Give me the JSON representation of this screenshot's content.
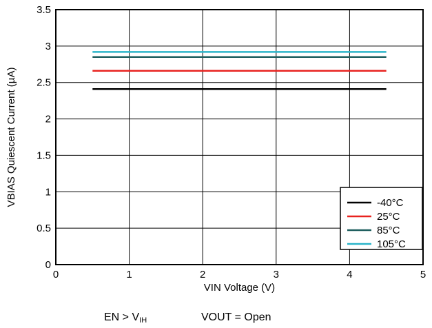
{
  "chart_data": {
    "type": "line",
    "title": "",
    "xlabel": "VIN Voltage (V)",
    "ylabel": "VBIAS Quiescent Current (µA)",
    "xlim": [
      0,
      5
    ],
    "ylim": [
      0,
      3.5
    ],
    "x_ticks": [
      "0",
      "1",
      "2",
      "3",
      "4",
      "5"
    ],
    "y_ticks": [
      "0",
      "0.5",
      "1",
      "1.5",
      "2",
      "2.5",
      "3",
      "3.5"
    ],
    "grid": true,
    "legend_position": "bottom-right",
    "series": [
      {
        "name": "-40°C",
        "color": "#000000",
        "x": [
          0.5,
          4.5
        ],
        "y": [
          2.41,
          2.41
        ]
      },
      {
        "name": "25°C",
        "color": "#e8221f",
        "x": [
          0.5,
          4.5
        ],
        "y": [
          2.66,
          2.66
        ]
      },
      {
        "name": "85°C",
        "color": "#1f5f5f",
        "x": [
          0.5,
          4.5
        ],
        "y": [
          2.85,
          2.85
        ]
      },
      {
        "name": "105°C",
        "color": "#2ab4c9",
        "x": [
          0.5,
          4.5
        ],
        "y": [
          2.92,
          2.92
        ]
      }
    ]
  },
  "caption": {
    "condition1_main": "EN > V",
    "condition1_sub": "IH",
    "condition2": "VOUT = Open"
  }
}
